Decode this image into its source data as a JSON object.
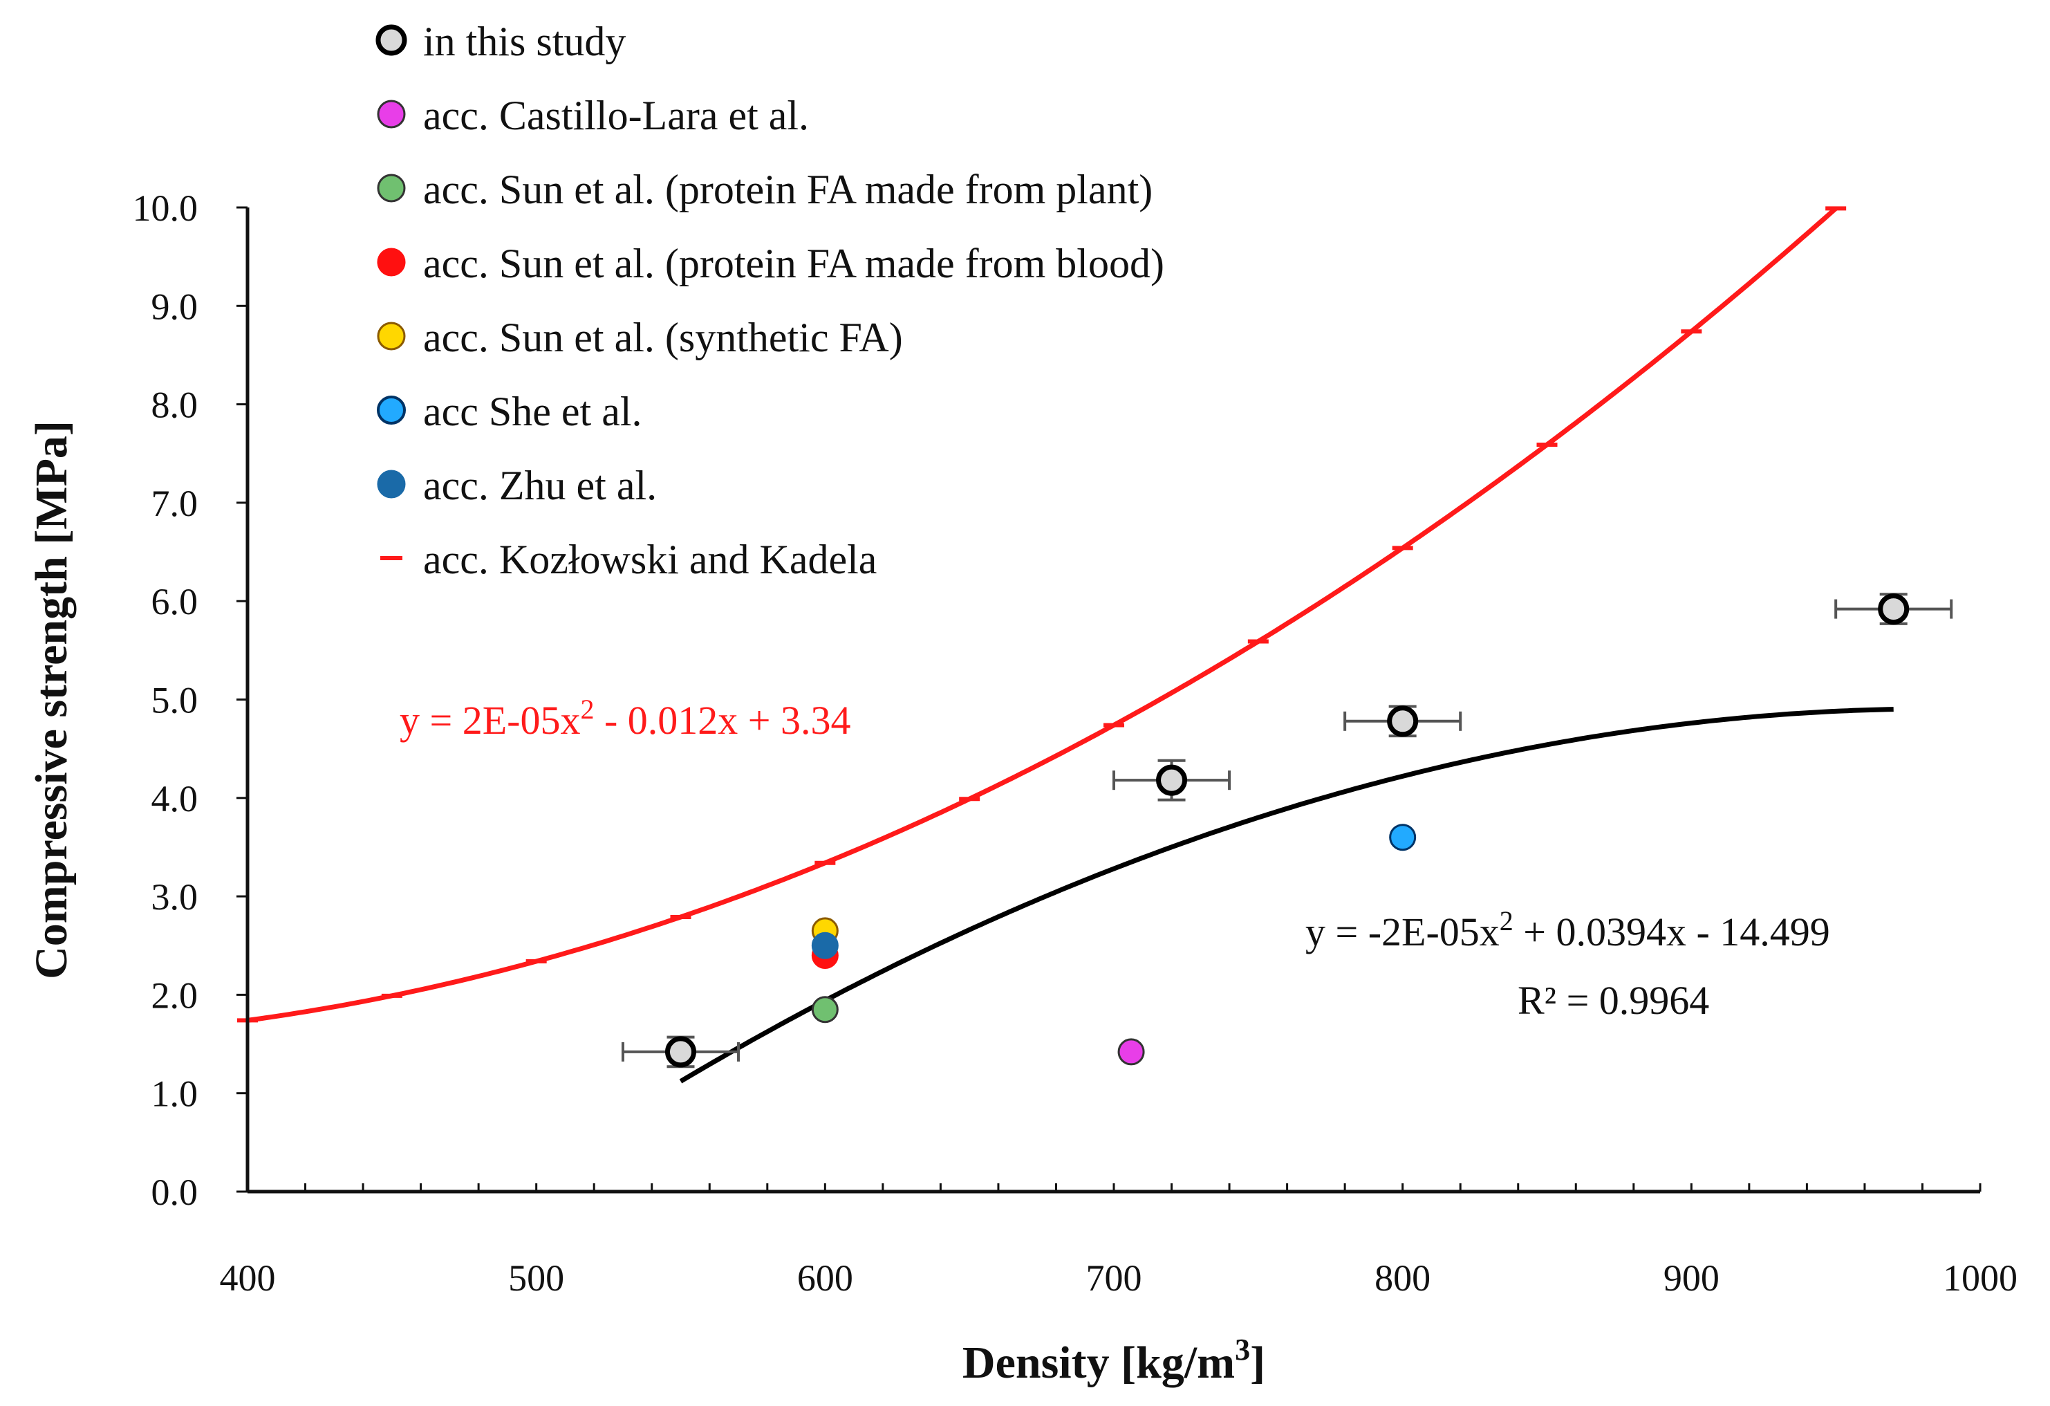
{
  "chart_data": {
    "type": "scatter",
    "xlabel": "Density [kg/m",
    "xlabel_sup": "3",
    "xlabel_end": "]",
    "ylabel": "Compressive strength [MPa]",
    "xlim": [
      400,
      1000
    ],
    "ylim": [
      0,
      10
    ],
    "x_ticks": [
      400,
      500,
      600,
      700,
      800,
      900,
      1000
    ],
    "x_tick_labels": [
      "400",
      "500",
      "600",
      "700",
      "800",
      "900",
      "1000"
    ],
    "y_ticks": [
      0,
      1,
      2,
      3,
      4,
      5,
      6,
      7,
      8,
      9,
      10
    ],
    "y_tick_labels": [
      "0.0",
      "1.0",
      "2.0",
      "3.0",
      "4.0",
      "5.0",
      "6.0",
      "7.0",
      "8.0",
      "9.0",
      "10.0"
    ],
    "grid": false,
    "legend_position": "top-left",
    "series": [
      {
        "name": "in this study",
        "marker": "circle-open",
        "color": "#d9d9d9",
        "edge": "#000000",
        "points": [
          {
            "x": 550,
            "y": 1.42,
            "xerr": 20,
            "yerr": 0.15
          },
          {
            "x": 720,
            "y": 4.18,
            "xerr": 20,
            "yerr": 0.2
          },
          {
            "x": 800,
            "y": 4.78,
            "xerr": 20,
            "yerr": 0.15
          },
          {
            "x": 970,
            "y": 5.92,
            "xerr": 20,
            "yerr": 0.15
          }
        ]
      },
      {
        "name": "acc. Castillo-Lara et al.",
        "marker": "circle",
        "color": "#e83ee8",
        "edge": "#333333",
        "points": [
          {
            "x": 706,
            "y": 1.42
          }
        ]
      },
      {
        "name": "acc. Sun et al. (protein FA made from plant)",
        "marker": "circle",
        "color": "#70c070",
        "edge": "#333333",
        "points": [
          {
            "x": 600,
            "y": 1.85
          }
        ]
      },
      {
        "name": "acc. Sun et al. (protein FA made from blood)",
        "marker": "circle",
        "color": "#ff1010",
        "edge": "#ff1010",
        "points": [
          {
            "x": 600,
            "y": 2.4
          }
        ]
      },
      {
        "name": "acc. Sun et al. (synthetic FA)",
        "marker": "circle",
        "color": "#ffd700",
        "edge": "#8b5a00",
        "points": [
          {
            "x": 600,
            "y": 2.65
          }
        ]
      },
      {
        "name": "acc She et al.",
        "marker": "circle",
        "color": "#22aaff",
        "edge": "#003366",
        "points": [
          {
            "x": 800,
            "y": 3.6
          }
        ]
      },
      {
        "name": "acc. Zhu et al.",
        "marker": "circle",
        "color": "#1a6aa8",
        "edge": "#1a6aa8",
        "points": [
          {
            "x": 600,
            "y": 2.5
          }
        ]
      }
    ],
    "curves": [
      {
        "name": "acc. Kozłowski and Kadela",
        "color": "#ff1a1a",
        "a": 2e-05,
        "b": -0.012,
        "c": 3.34,
        "x_range": [
          400,
          950
        ],
        "marker_step": 50
      },
      {
        "name": "in this study trend",
        "color": "#000000",
        "a": -2e-05,
        "b": 0.0394,
        "c": -14.499,
        "x_range": [
          550,
          970
        ]
      }
    ],
    "annotations": {
      "red_eq": {
        "pre": "y = 2E-05x",
        "sup": "2",
        "post": " - 0.012x + 3.34"
      },
      "black_eq": {
        "pre": "y = -2E-05x",
        "sup": "2",
        "post": " + 0.0394x - 14.499"
      },
      "black_r2": "R² = 0.9964"
    }
  }
}
